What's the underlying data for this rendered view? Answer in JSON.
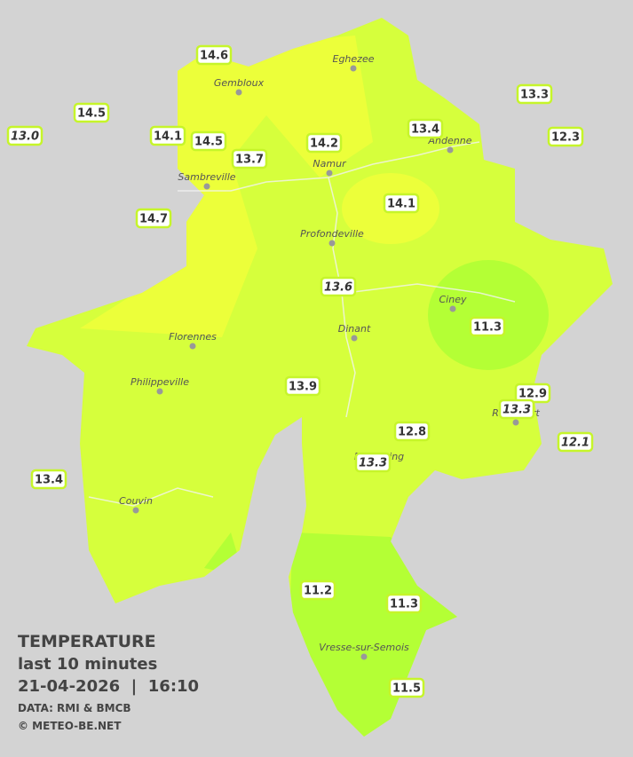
{
  "legend": {
    "title": "TEMPERATURE",
    "period": "last 10 minutes",
    "datetime": "21-04-2026  |  16:10",
    "source": "DATA: RMI & BMCB",
    "credit": "© METEO-BE.NET"
  },
  "cities": [
    "Eghezee",
    "Gembloux",
    "Andenne",
    "Namur",
    "Sambreville",
    "Profondeville",
    "Ciney",
    "Dinant",
    "Florennes",
    "Philippeville",
    "Rochefort",
    "Beauraing",
    "Couvin",
    "Vresse-sur-Semois"
  ],
  "stations": [
    "14.6",
    "14.5",
    "13.0",
    "14.1",
    "14.5",
    "13.7",
    "14.2",
    "13.4",
    "13.3",
    "12.3",
    "14.7",
    "14.1",
    "13.6",
    "11.3",
    "13.9",
    "12.9",
    "13.3",
    "12.8",
    "12.1",
    "13.3",
    "13.4",
    "11.2",
    "11.3",
    "11.5"
  ]
}
